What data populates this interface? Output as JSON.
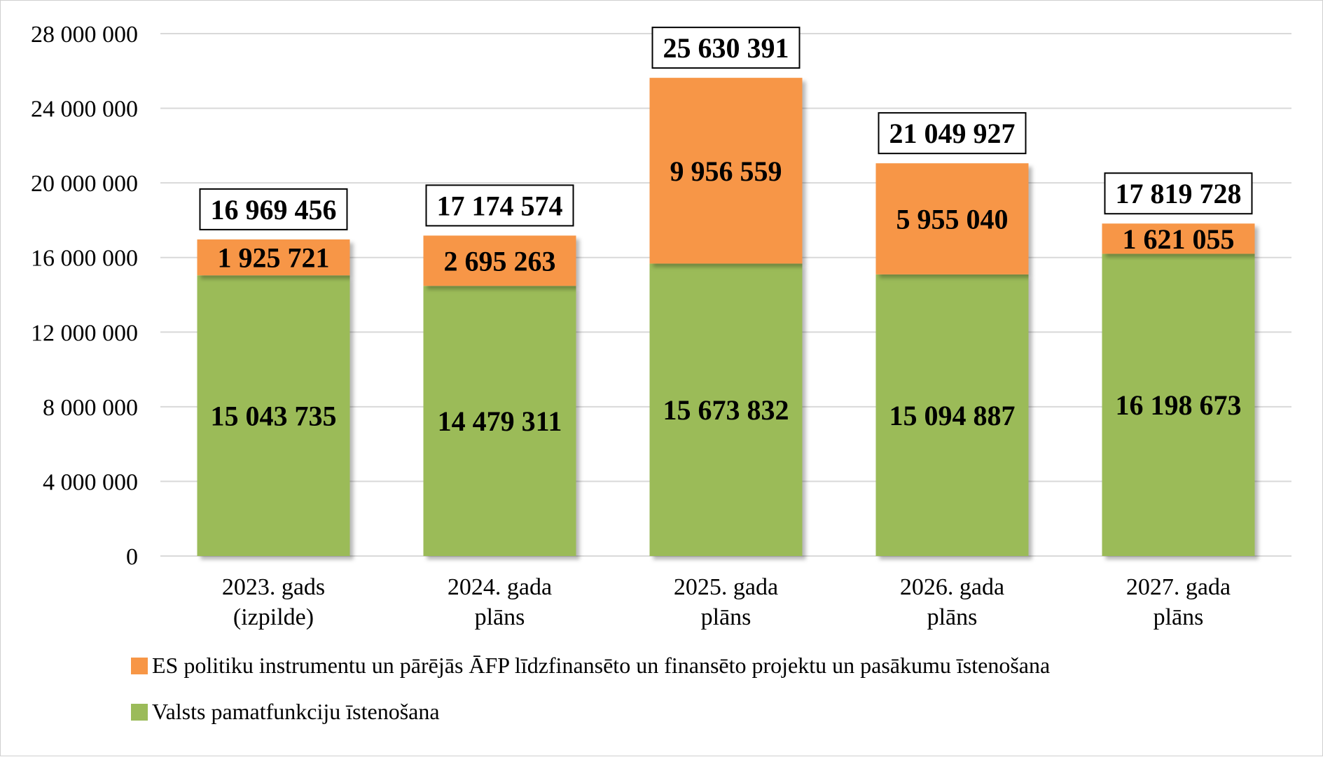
{
  "chart_data": {
    "type": "bar",
    "stacked": true,
    "categories": [
      [
        "2023. gads",
        "(izpilde)"
      ],
      [
        "2024. gada",
        "plāns"
      ],
      [
        "2025. gada",
        "plāns"
      ],
      [
        "2026. gada",
        "plāns"
      ],
      [
        "2027. gada",
        "plāns"
      ]
    ],
    "series": [
      {
        "name": "Valsts pamatfunkciju īstenošana",
        "color": "#9bbb59",
        "values": [
          15043735,
          14479311,
          15673832,
          15094887,
          16198673
        ],
        "labels": [
          "15 043 735",
          "14 479 311",
          "15 673 832",
          "15 094 887",
          "16 198 673"
        ]
      },
      {
        "name": "ES politiku instrumentu un pārējās ĀFP līdzfinansēto un finansēto projektu un pasākumu īstenošana",
        "color": "#f79646",
        "values": [
          1925721,
          2695263,
          9956559,
          5955040,
          1621055
        ],
        "labels": [
          "1 925 721",
          "2 695 263",
          "9 956 559",
          "5 955 040",
          "1 621 055"
        ]
      }
    ],
    "totals": [
      16969456,
      17174574,
      25630391,
      21049927,
      17819728
    ],
    "total_labels": [
      "16 969 456",
      "17 174 574",
      "25 630 391",
      "21 049 927",
      "17 819 728"
    ],
    "ylim": [
      0,
      28000000
    ],
    "yticks": [
      0,
      4000000,
      8000000,
      12000000,
      16000000,
      20000000,
      24000000,
      28000000
    ],
    "ytick_labels": [
      "0",
      "4 000 000",
      "8 000 000",
      "12 000 000",
      "16 000 000",
      "20 000 000",
      "24 000 000",
      "28 000 000"
    ],
    "grid": true,
    "legend_position": "bottom",
    "legend_order": [
      1,
      0
    ]
  }
}
